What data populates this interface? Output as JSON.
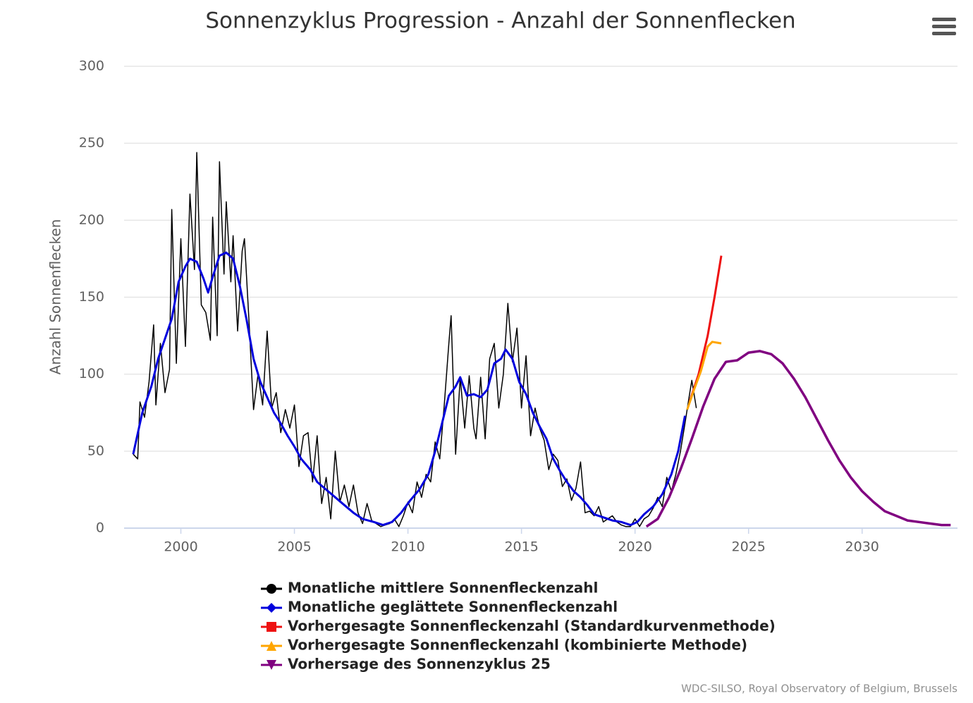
{
  "chart_data": {
    "type": "line",
    "title": "Sonnenzyklus Progression - Anzahl der Sonnenflecken",
    "y_label": "Anzahl Sonnenflecken",
    "credit": "WDC-SILSO, Royal Observatory of Belgium, Brussels",
    "xlim": [
      1997.5,
      2034.2
    ],
    "xticks": [
      2000,
      2005,
      2010,
      2015,
      2020,
      2025,
      2030
    ],
    "ylim": [
      0,
      300
    ],
    "yticks": [
      0,
      50,
      100,
      150,
      200,
      250,
      300
    ],
    "grid": true,
    "legend": "bottom",
    "series": [
      {
        "name": "Monatliche mittlere Sonnenfleckenzahl",
        "color": "#000000",
        "marker": "circle",
        "width": 1.5,
        "x": [
          1997.9,
          1998.1,
          1998.2,
          1998.4,
          1998.6,
          1998.8,
          1998.9,
          1999.1,
          1999.3,
          1999.5,
          1999.6,
          1999.8,
          2000.0,
          2000.2,
          2000.4,
          2000.6,
          2000.7,
          2000.9,
          2001.1,
          2001.3,
          2001.4,
          2001.6,
          2001.7,
          2001.9,
          2002.0,
          2002.2,
          2002.3,
          2002.5,
          2002.7,
          2002.8,
          2003.0,
          2003.2,
          2003.4,
          2003.6,
          2003.8,
          2004.0,
          2004.2,
          2004.4,
          2004.6,
          2004.8,
          2005.0,
          2005.2,
          2005.4,
          2005.6,
          2005.8,
          2006.0,
          2006.2,
          2006.4,
          2006.6,
          2006.8,
          2007.0,
          2007.2,
          2007.4,
          2007.6,
          2007.8,
          2008.0,
          2008.2,
          2008.4,
          2008.6,
          2008.8,
          2009.0,
          2009.2,
          2009.4,
          2009.6,
          2009.8,
          2010.0,
          2010.2,
          2010.4,
          2010.6,
          2010.8,
          2011.0,
          2011.2,
          2011.4,
          2011.6,
          2011.8,
          2011.9,
          2012.1,
          2012.3,
          2012.5,
          2012.7,
          2012.9,
          2013.0,
          2013.2,
          2013.4,
          2013.6,
          2013.8,
          2014.0,
          2014.2,
          2014.4,
          2014.6,
          2014.8,
          2015.0,
          2015.2,
          2015.4,
          2015.6,
          2015.8,
          2016.0,
          2016.2,
          2016.4,
          2016.6,
          2016.8,
          2017.0,
          2017.2,
          2017.4,
          2017.6,
          2017.8,
          2018.0,
          2018.2,
          2018.4,
          2018.6,
          2018.8,
          2019.0,
          2019.2,
          2019.4,
          2019.6,
          2019.8,
          2020.0,
          2020.2,
          2020.4,
          2020.6,
          2020.8,
          2021.0,
          2021.2,
          2021.4,
          2021.6,
          2021.8,
          2022.0,
          2022.2,
          2022.4,
          2022.5,
          2022.7
        ],
        "values": [
          48,
          45,
          82,
          72,
          95,
          132,
          80,
          120,
          88,
          103,
          207,
          107,
          188,
          118,
          217,
          168,
          244,
          145,
          140,
          122,
          202,
          125,
          238,
          165,
          212,
          160,
          190,
          128,
          180,
          188,
          135,
          77,
          100,
          80,
          128,
          78,
          88,
          62,
          77,
          65,
          80,
          40,
          60,
          62,
          30,
          60,
          16,
          33,
          6,
          50,
          17,
          28,
          14,
          28,
          10,
          3,
          16,
          5,
          3,
          1,
          2,
          3,
          6,
          1,
          8,
          17,
          10,
          30,
          20,
          35,
          30,
          56,
          45,
          80,
          120,
          138,
          48,
          98,
          65,
          99,
          65,
          58,
          98,
          58,
          110,
          120,
          78,
          100,
          146,
          108,
          130,
          78,
          112,
          60,
          78,
          65,
          57,
          38,
          48,
          44,
          27,
          32,
          18,
          26,
          43,
          10,
          11,
          8,
          14,
          4,
          6,
          8,
          4,
          2,
          1,
          1,
          6,
          1,
          6,
          8,
          13,
          20,
          14,
          33,
          24,
          35,
          50,
          68,
          87,
          96,
          78
        ]
      },
      {
        "name": "Monatliche geglättete Sonnenfleckenzahl",
        "color": "#0000dd",
        "marker": "diamond",
        "width": 3,
        "x": [
          1997.9,
          1998.3,
          1998.7,
          1999.0,
          1999.3,
          1999.6,
          1999.9,
          2000.2,
          2000.4,
          2000.7,
          2001.0,
          2001.2,
          2001.4,
          2001.7,
          2002.0,
          2002.3,
          2002.6,
          2002.9,
          2003.2,
          2003.5,
          2003.8,
          2004.1,
          2004.4,
          2004.7,
          2005.0,
          2005.3,
          2005.7,
          2006.0,
          2006.4,
          2006.8,
          2007.2,
          2007.6,
          2008.0,
          2008.5,
          2008.9,
          2009.3,
          2009.7,
          2010.1,
          2010.5,
          2010.9,
          2011.2,
          2011.5,
          2011.8,
          2012.1,
          2012.3,
          2012.6,
          2012.9,
          2013.2,
          2013.5,
          2013.8,
          2014.1,
          2014.3,
          2014.6,
          2014.9,
          2015.2,
          2015.5,
          2015.8,
          2016.1,
          2016.4,
          2016.7,
          2017.0,
          2017.3,
          2017.6,
          2017.9,
          2018.2,
          2018.6,
          2019.0,
          2019.4,
          2019.8,
          2020.1,
          2020.4,
          2020.8,
          2021.2,
          2021.6,
          2021.9,
          2022.2
        ],
        "values": [
          48,
          75,
          92,
          110,
          123,
          136,
          160,
          170,
          175,
          173,
          162,
          153,
          163,
          177,
          179,
          175,
          157,
          135,
          110,
          95,
          85,
          75,
          68,
          60,
          53,
          45,
          38,
          30,
          25,
          20,
          15,
          10,
          6,
          4,
          2,
          4,
          10,
          18,
          25,
          35,
          50,
          68,
          86,
          92,
          98,
          86,
          87,
          85,
          90,
          107,
          110,
          116,
          110,
          95,
          87,
          75,
          66,
          58,
          45,
          37,
          30,
          24,
          20,
          15,
          9,
          7,
          5,
          4,
          2,
          4,
          9,
          14,
          22,
          35,
          50,
          73
        ]
      },
      {
        "name": "Vorhergesagte Sonnenfleckenzahl (Standardkurvenmethode)",
        "color": "#ee1111",
        "marker": "square",
        "width": 3,
        "x": [
          2022.4,
          2022.8,
          2023.2,
          2023.5,
          2023.8
        ],
        "values": [
          82,
          100,
          125,
          150,
          177
        ]
      },
      {
        "name": "Vorhergesagte Sonnenfleckenzahl (kombinierte Methode)",
        "color": "#ffa500",
        "marker": "triangle",
        "width": 3,
        "x": [
          2022.3,
          2022.6,
          2022.9,
          2023.2,
          2023.4,
          2023.8
        ],
        "values": [
          77,
          90,
          102,
          118,
          121,
          120
        ]
      },
      {
        "name": "Vorhersage des Sonnenzyklus 25",
        "color": "#800080",
        "marker": "triangle-down",
        "width": 3.5,
        "x": [
          2020.5,
          2021.0,
          2021.5,
          2022.0,
          2022.5,
          2023.0,
          2023.5,
          2024.0,
          2024.5,
          2025.0,
          2025.5,
          2026.0,
          2026.5,
          2027.0,
          2027.5,
          2028.0,
          2028.5,
          2029.0,
          2029.5,
          2030.0,
          2030.5,
          2031.0,
          2031.5,
          2032.0,
          2032.5,
          2033.0,
          2033.5,
          2033.9
        ],
        "values": [
          1,
          6,
          20,
          38,
          58,
          79,
          97,
          108,
          109,
          114,
          115,
          113,
          107,
          97,
          85,
          71,
          57,
          44,
          33,
          24,
          17,
          11,
          8,
          5,
          4,
          3,
          2,
          2
        ]
      }
    ]
  }
}
